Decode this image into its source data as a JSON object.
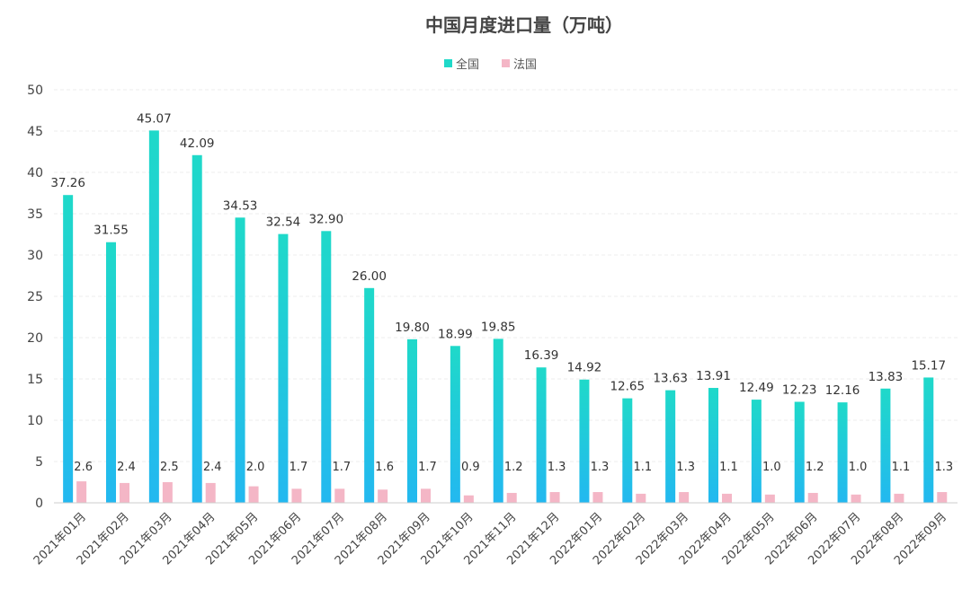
{
  "chart_data": {
    "type": "bar",
    "title": "中国月度进口量（万吨）",
    "legend_position": "top-center",
    "grid": true,
    "ylim": [
      0,
      50
    ],
    "yticks": [
      0,
      5,
      10,
      15,
      20,
      25,
      30,
      35,
      40,
      45,
      50
    ],
    "categories": [
      "2021年01月",
      "2021年02月",
      "2021年03月",
      "2021年04月",
      "2021年05月",
      "2021年06月",
      "2021年07月",
      "2021年08月",
      "2021年09月",
      "2021年10月",
      "2021年11月",
      "2021年12月",
      "2022年01月",
      "2022年02月",
      "2022年03月",
      "2022年04月",
      "2022年05月",
      "2022年06月",
      "2022年07月",
      "2022年08月",
      "2022年09月"
    ],
    "series": [
      {
        "name": "全国",
        "color": "#1fd9c9",
        "color_bottom": "#23b8f0",
        "values": [
          37.26,
          31.55,
          45.07,
          42.09,
          34.53,
          32.54,
          32.9,
          26.0,
          19.8,
          18.99,
          19.85,
          16.39,
          14.92,
          12.65,
          13.63,
          13.91,
          12.49,
          12.23,
          12.16,
          13.83,
          15.17
        ],
        "labels": [
          "37.26",
          "31.55",
          "45.07",
          "42.09",
          "34.53",
          "32.54",
          "32.90",
          "26.00",
          "19.80",
          "18.99",
          "19.85",
          "16.39",
          "14.92",
          "12.65",
          "13.63",
          "13.91",
          "12.49",
          "12.23",
          "12.16",
          "13.83",
          "15.17"
        ]
      },
      {
        "name": "法国",
        "color": "#f4b6c6",
        "values": [
          2.6,
          2.4,
          2.5,
          2.4,
          2.0,
          1.7,
          1.7,
          1.6,
          1.7,
          0.9,
          1.2,
          1.3,
          1.3,
          1.1,
          1.3,
          1.1,
          1.0,
          1.2,
          1.0,
          1.1,
          1.3
        ],
        "labels": [
          "2.6",
          "2.4",
          "2.5",
          "2.4",
          "2.0",
          "1.7",
          "1.7",
          "1.6",
          "1.7",
          "0.9",
          "1.2",
          "1.3",
          "1.3",
          "1.1",
          "1.3",
          "1.1",
          "1.0",
          "1.2",
          "1.0",
          "1.1",
          "1.3"
        ]
      }
    ]
  }
}
